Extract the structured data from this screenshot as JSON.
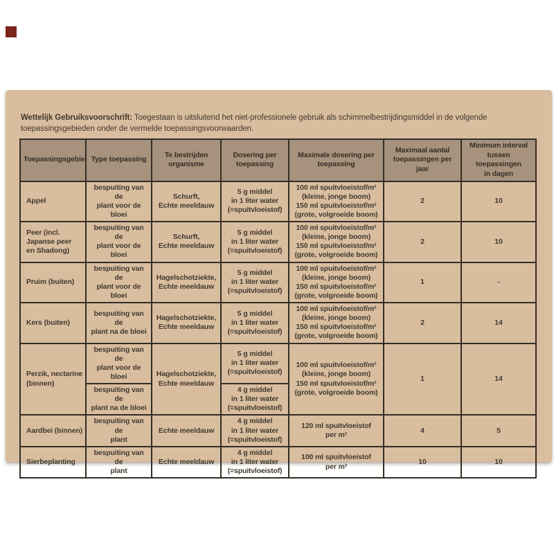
{
  "colors": {
    "page_bg": "#ffffff",
    "red_chip": "#7b241c",
    "card_bg": "#d9bd9f",
    "header_bg": "#a6927d",
    "border": "#332d26",
    "header_text": "#352e25",
    "body_text": "#423a2e",
    "intro_text": "#43392c"
  },
  "intro": {
    "label": "Wettelijk Gebruiksvoorschrift:",
    "text": " Toegestaan is uitsluitend het niet-professionele gebruik als schimmelbestrijdingsmiddel in de volgende toepassingsgebieden onder de vermelde toepassingsvoorwaarden."
  },
  "table": {
    "headers": [
      "Toepassingsgebied",
      "Type toepassing",
      "Te bestrijden\norganisme",
      "Dosering per\ntoepassing",
      "Maximale dosering per\ntoepassing",
      "Maximaal aantal\ntoepassingen per jaar",
      "Minimum interval\ntussen toepassingen\nin dagen"
    ],
    "rows": [
      {
        "gebied": "Appel",
        "type": "bespuiting van de\nplant voor de bloei",
        "organisme": "Schurft,\nEchte meeldauw",
        "dosering": "5 g middel\nin 1 liter water\n(=spuitvloeistof)",
        "max_dosering": "100 ml spuitvloeistof/m²\n(kleine, jonge boom)\n150 ml spuitvloeistof/m²\n(grote, volgroeide boom)",
        "aantal": "2",
        "interval": "10"
      },
      {
        "gebied": "Peer (incl.\nJapanse peer\nen Shadong)",
        "type": "bespuiting van de\nplant voor de bloei",
        "organisme": "Schurft,\nEchte meeldauw",
        "dosering": "5 g middel\nin 1 liter water\n(=spuitvloeistof)",
        "max_dosering": "100 ml spuitvloeistof/m²\n(kleine, jonge boom)\n150 ml spuitvloeistof/m²\n(grote, volgroeide boom)",
        "aantal": "2",
        "interval": "10"
      },
      {
        "gebied": "Pruim (buiten)",
        "type": "bespuiting van de\nplant voor de bloei",
        "organisme": "Hagelschotziekte,\nEchte meeldauw",
        "dosering": "5 g middel\nin 1 liter water\n(=spuitvloeistof)",
        "max_dosering": "100 ml spuitvloeistof/m²\n(kleine, jonge boom)\n150 ml spuitvloeistof/m²\n(grote, volgroeide boom)",
        "aantal": "1",
        "interval": "-"
      },
      {
        "gebied": "Kers (buiten)",
        "type": "bespuiting van de\nplant na de bloei",
        "organisme": "Hagelschotziekte,\nEchte meeldauw",
        "dosering": "5 g middel\nin 1 liter water\n(=spuitvloeistof)",
        "max_dosering": "100 ml spuitvloeistof/m²\n(kleine, jonge boom)\n150 ml spuitvloeistof/m²\n(grote, volgroeide boom)",
        "aantal": "2",
        "interval": "14"
      },
      {
        "gebied": "Perzik, nectarine\n(binnen)",
        "split": [
          {
            "type": "bespuiting van de\nplant voor de bloei",
            "dosering": "5 g middel\nin 1 liter water\n(=spuitvloeistof)"
          },
          {
            "type": "bespuiting van de\nplant na de bloei",
            "dosering": "4 g middel\nin 1 liter water\n(=spuitvloeistof)"
          }
        ],
        "organisme": "Hagelschotziekte,\nEchte meeldauw",
        "max_dosering": "100 ml spuitvloeistof/m²\n(kleine, jonge boom)\n150 ml spuitvloeistof/m²\n(grote, volgroeide boom)",
        "aantal": "1",
        "interval": "14"
      },
      {
        "gebied": "Aardbei (binnen)",
        "type": "bespuiting van de\nplant",
        "organisme": "Echte meeldauw",
        "dosering": "4 g middel\nin 1 liter water\n(=spuitvloeistof)",
        "max_dosering": "120 ml spuitvloeistof\nper m²",
        "aantal": "4",
        "interval": "5"
      },
      {
        "gebied": "Sierbeplanting",
        "type": "bespuiting van de\nplant",
        "organisme": "Echte meeldauw",
        "dosering": "4 g middel\nin 1 liter water\n(=spuitvloeistof)",
        "max_dosering": "100 ml spuitvloeistof\nper m²",
        "aantal": "10",
        "interval": "10"
      }
    ]
  }
}
